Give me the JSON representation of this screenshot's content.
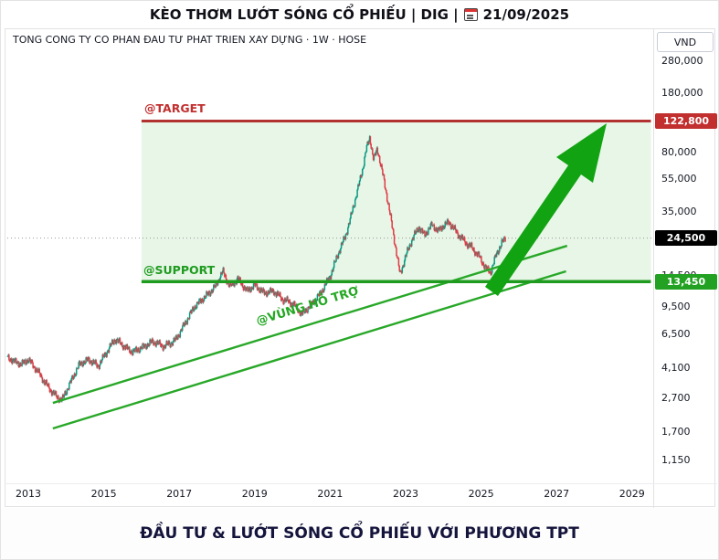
{
  "header": {
    "title_main": "KÈO THƠM LƯỚT SÓNG CỔ PHIẾU | DIG |",
    "title_date": "21/09/2025"
  },
  "symbol_bar": {
    "text": "TONG CONG TY CO PHAN ĐAU TƯ PHAT TRIEN XAY DỰNG · 1W · HOSE"
  },
  "price_axis": {
    "currency_label": "VND"
  },
  "annotations": {
    "target_label": "@TARGET",
    "support_label": "@SUPPORT",
    "channel_label": "@VÙNG HỖ TRỢ"
  },
  "footer": {
    "text": "ĐẦU TƯ & LƯỚT SÓNG CỔ PHIẾU VỚI PHƯƠNG TPT"
  },
  "colors": {
    "up": "#089981",
    "down": "#e23b45",
    "target_line": "#b23232",
    "support_line": "#1f9b1f",
    "channel": "#28a828",
    "zone_fill": "#3cb53c",
    "arrow": "#12a312",
    "target_badge": "#c22f2f",
    "current_badge": "#000000",
    "support_badge": "#22a122"
  },
  "chart_data": {
    "type": "candlestick",
    "symbol": "DIG",
    "exchange": "HOSE",
    "timeframe": "1W",
    "currency": "VND",
    "y_axis": {
      "scale": "log",
      "ticks": [
        280000,
        180000,
        80000,
        55000,
        35000,
        14500,
        9500,
        6500,
        4100,
        2700,
        1700,
        1150
      ]
    },
    "x_axis": {
      "ticks": [
        2013,
        2015,
        2017,
        2019,
        2021,
        2023,
        2025,
        2027,
        2029
      ]
    },
    "levels": {
      "target": 122800,
      "current": 24500,
      "support": 13450
    },
    "zone": {
      "x_start_year": 2016,
      "x_end_year": 2029.5
    },
    "support_channel": {
      "upper": [
        [
          2013.65,
          2530
        ],
        [
          2027.28,
          22030
        ]
      ],
      "lower": [
        [
          2013.65,
          1780
        ],
        [
          2027.25,
          15500
        ]
      ]
    },
    "price_path": [
      [
        2012.45,
        4700
      ],
      [
        2012.8,
        4300
      ],
      [
        2013.0,
        4600
      ],
      [
        2013.25,
        3900
      ],
      [
        2013.5,
        3200
      ],
      [
        2013.75,
        2750
      ],
      [
        2013.9,
        2650
      ],
      [
        2014.1,
        3300
      ],
      [
        2014.35,
        4300
      ],
      [
        2014.6,
        4600
      ],
      [
        2014.85,
        4200
      ],
      [
        2015.1,
        5200
      ],
      [
        2015.3,
        6100
      ],
      [
        2015.5,
        5600
      ],
      [
        2015.75,
        5100
      ],
      [
        2016.0,
        5400
      ],
      [
        2016.3,
        5900
      ],
      [
        2016.6,
        5500
      ],
      [
        2016.9,
        6000
      ],
      [
        2017.1,
        7200
      ],
      [
        2017.4,
        9500
      ],
      [
        2017.7,
        11000
      ],
      [
        2017.95,
        12500
      ],
      [
        2018.15,
        15500
      ],
      [
        2018.35,
        12500
      ],
      [
        2018.55,
        14000
      ],
      [
        2018.8,
        11800
      ],
      [
        2019.0,
        12800
      ],
      [
        2019.25,
        11500
      ],
      [
        2019.5,
        11800
      ],
      [
        2019.75,
        10500
      ],
      [
        2020.0,
        10000
      ],
      [
        2020.25,
        8600
      ],
      [
        2020.5,
        9800
      ],
      [
        2020.75,
        11500
      ],
      [
        2021.0,
        14500
      ],
      [
        2021.2,
        19500
      ],
      [
        2021.4,
        25000
      ],
      [
        2021.55,
        33000
      ],
      [
        2021.7,
        45000
      ],
      [
        2021.85,
        62000
      ],
      [
        2021.95,
        82000
      ],
      [
        2022.05,
        98000
      ],
      [
        2022.15,
        72000
      ],
      [
        2022.25,
        84000
      ],
      [
        2022.4,
        58000
      ],
      [
        2022.55,
        38000
      ],
      [
        2022.7,
        24000
      ],
      [
        2022.85,
        14800
      ],
      [
        2023.0,
        19000
      ],
      [
        2023.15,
        23500
      ],
      [
        2023.35,
        28500
      ],
      [
        2023.5,
        25500
      ],
      [
        2023.7,
        29500
      ],
      [
        2023.85,
        27000
      ],
      [
        2024.0,
        29000
      ],
      [
        2024.15,
        30500
      ],
      [
        2024.35,
        26500
      ],
      [
        2024.55,
        23500
      ],
      [
        2024.75,
        21500
      ],
      [
        2024.95,
        19000
      ],
      [
        2025.1,
        16500
      ],
      [
        2025.25,
        15200
      ],
      [
        2025.4,
        19500
      ],
      [
        2025.55,
        23000
      ],
      [
        2025.65,
        24500
      ]
    ]
  }
}
